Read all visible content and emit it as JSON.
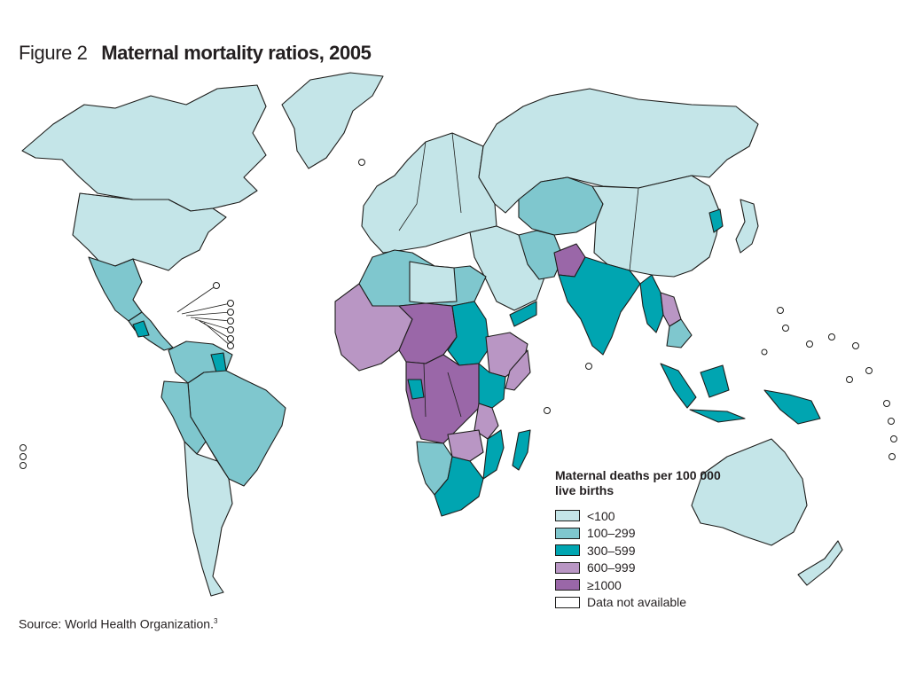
{
  "figure": {
    "label": "Figure 2",
    "title": "Maternal mortality ratios, 2005"
  },
  "legend": {
    "title": "Maternal deaths per 100 000 live births",
    "items": [
      {
        "label": "<100",
        "color": "#c4e5e8"
      },
      {
        "label": "100–299",
        "color": "#7fc7ce"
      },
      {
        "label": "300–599",
        "color": "#00a5b1"
      },
      {
        "label": "600–999",
        "color": "#b996c4"
      },
      {
        "label": "≥1000",
        "color": "#9a67a8"
      },
      {
        "label": "Data not available",
        "color": "#ffffff"
      }
    ]
  },
  "source": {
    "text": "Source: World Health Organization.",
    "ref": "3"
  },
  "colors": {
    "lt100": "#c4e5e8",
    "r100_299": "#7fc7ce",
    "r300_599": "#00a5b1",
    "r600_999": "#b996c4",
    "gte1000": "#9a67a8",
    "na": "#ffffff",
    "outline": "#1d1d1b"
  }
}
